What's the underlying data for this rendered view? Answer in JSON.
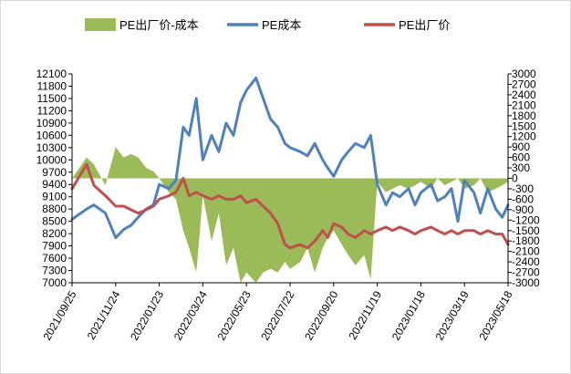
{
  "colors": {
    "spread": "#9BBB59",
    "cost": "#4F81BD",
    "price": "#C0504D"
  },
  "chart_data": {
    "type": "line",
    "legend": [
      "PE出厂价-成本",
      "PE成本",
      "PE出厂价"
    ],
    "legend_position": "top",
    "grid": false,
    "left_axis": {
      "min": 7000,
      "max": 12100,
      "step": 300,
      "ticks": [
        "7000",
        "7300",
        "7600",
        "7900",
        "8200",
        "8500",
        "8800",
        "9100",
        "9400",
        "9700",
        "10000",
        "10300",
        "10600",
        "10900",
        "11200",
        "11500",
        "11800",
        "12100"
      ]
    },
    "right_axis": {
      "min": -3000,
      "max": 3000,
      "step": 300,
      "ticks": [
        "-3000",
        "-2700",
        "-2400",
        "-2100",
        "-1800",
        "-1500",
        "-1200",
        "-900",
        "-600",
        "-300",
        "0",
        "300",
        "600",
        "900",
        "1200",
        "1500",
        "1800",
        "2100",
        "2400",
        "2700",
        "3000"
      ]
    },
    "x_ticks": [
      "2021/09/25",
      "2021/11/24",
      "2022/01/23",
      "2022/03/24",
      "2022/05/23",
      "2022/07/22",
      "2022/09/20",
      "2022/11/19",
      "2023/01/18",
      "2023/03/19",
      "2023/05/18"
    ],
    "dates": [
      "2021/09/25",
      "2021/10/15",
      "2021/10/25",
      "2021/11/10",
      "2021/11/24",
      "2021/12/05",
      "2021/12/15",
      "2021/12/25",
      "2022/01/05",
      "2022/01/15",
      "2022/01/23",
      "2022/02/05",
      "2022/02/15",
      "2022/02/25",
      "2022/03/05",
      "2022/03/15",
      "2022/03/24",
      "2022/04/05",
      "2022/04/15",
      "2022/04/25",
      "2022/05/05",
      "2022/05/15",
      "2022/05/23",
      "2022/06/05",
      "2022/06/15",
      "2022/06/25",
      "2022/07/05",
      "2022/07/15",
      "2022/07/22",
      "2022/08/05",
      "2022/08/15",
      "2022/08/25",
      "2022/09/05",
      "2022/09/12",
      "2022/09/20",
      "2022/10/01",
      "2022/10/10",
      "2022/10/20",
      "2022/11/01",
      "2022/11/10",
      "2022/11/19",
      "2022/12/01",
      "2022/12/10",
      "2022/12/20",
      "2023/01/01",
      "2023/01/10",
      "2023/01/18",
      "2023/02/01",
      "2023/02/10",
      "2023/02/20",
      "2023/03/01",
      "2023/03/10",
      "2023/03/19",
      "2023/04/01",
      "2023/04/10",
      "2023/04/20",
      "2023/05/01",
      "2023/05/10",
      "2023/05/18"
    ],
    "series": [
      {
        "name": "PE成本",
        "type": "line",
        "axis": "left",
        "values": [
          8550,
          8800,
          8900,
          8700,
          8100,
          8300,
          8400,
          8600,
          8800,
          8900,
          9400,
          9300,
          9500,
          10800,
          10600,
          11500,
          10000,
          10600,
          10200,
          10900,
          10600,
          11400,
          11700,
          12000,
          11500,
          11000,
          10800,
          10400,
          10300,
          10200,
          10100,
          10400,
          10000,
          9800,
          9600,
          10000,
          10200,
          10400,
          10300,
          10600,
          9400,
          8900,
          9200,
          9100,
          9300,
          8900,
          9200,
          9400,
          9000,
          9100,
          9300,
          8500,
          9500,
          9200,
          8700,
          9300,
          8800,
          8600,
          8900
        ]
      },
      {
        "name": "PE出厂价",
        "type": "line",
        "axis": "right",
        "values": [
          -300,
          400,
          -200,
          -500,
          -800,
          -800,
          -900,
          -1000,
          -900,
          -800,
          -600,
          -500,
          -400,
          0,
          -500,
          -400,
          -500,
          -600,
          -500,
          -600,
          -600,
          -500,
          -700,
          -600,
          -800,
          -1000,
          -1300,
          -1900,
          -2000,
          -1900,
          -2000,
          -1800,
          -1500,
          -1700,
          -1300,
          -1400,
          -1600,
          -1700,
          -1500,
          -1600,
          -1500,
          -1400,
          -1500,
          -1400,
          -1500,
          -1600,
          -1500,
          -1400,
          -1500,
          -1600,
          -1500,
          -1600,
          -1500,
          -1500,
          -1600,
          -1500,
          -1600,
          -1600,
          -1900
        ]
      },
      {
        "name": "PE出厂价-成本",
        "type": "area",
        "axis": "right",
        "values": [
          0,
          600,
          400,
          -200,
          900,
          600,
          700,
          600,
          300,
          200,
          0,
          -400,
          -600,
          -1500,
          -2000,
          -2700,
          -500,
          -1800,
          -1000,
          -2500,
          -2000,
          -3000,
          -2700,
          -3000,
          -2700,
          -2600,
          -2700,
          -2400,
          -2600,
          -2400,
          -2000,
          -2700,
          -2000,
          -1700,
          -1500,
          -1900,
          -2200,
          -2500,
          -2200,
          -2900,
          -100,
          -400,
          -300,
          -200,
          -300,
          -200,
          -100,
          -300,
          0,
          -200,
          -100,
          0,
          -300,
          -200,
          0,
          -400,
          -300,
          -200,
          -100
        ]
      }
    ]
  }
}
